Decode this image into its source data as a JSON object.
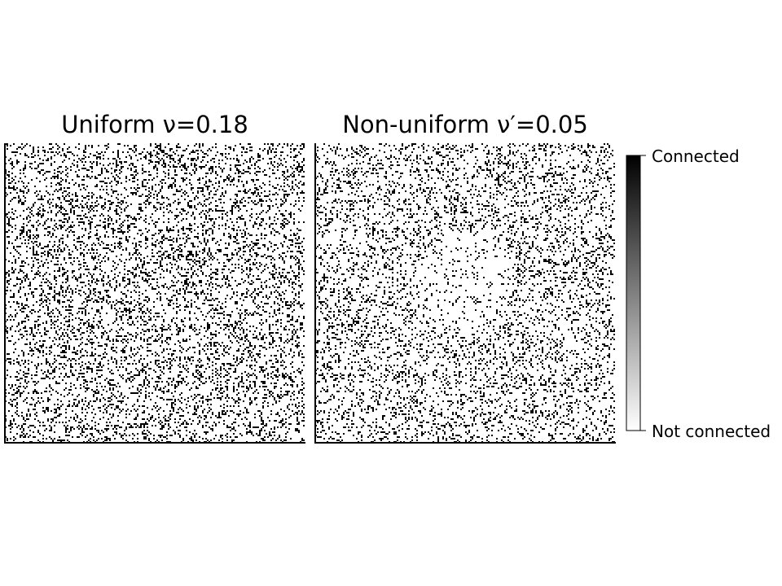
{
  "chart_data": [
    {
      "type": "heatmap",
      "title": "Uniform ν=0.18",
      "density": 0.18,
      "xlabel": "",
      "ylabel": "",
      "grid": false,
      "cmap": "gray_r"
    },
    {
      "type": "heatmap",
      "title": "Non-uniform ν′=0.05",
      "density": 0.05,
      "xlabel": "",
      "ylabel": "",
      "grid": false,
      "cmap": "gray_r"
    }
  ],
  "colorbar": {
    "top_label": "Connected",
    "bottom_label": "Not connected",
    "color_high": "#000000",
    "color_low": "#ffffff"
  }
}
